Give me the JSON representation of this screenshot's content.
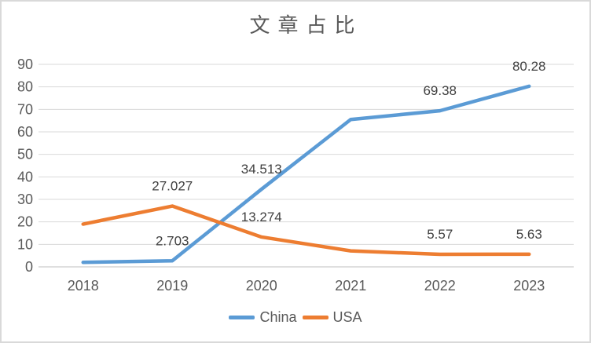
{
  "title": "文章占比",
  "colors": {
    "series_china": "#5B9BD5",
    "series_usa": "#ED7D31",
    "gridline": "#D9D9D9",
    "axis_line": "#BFBFBF",
    "axis_text": "#595959",
    "data_label_text": "#404040",
    "title_text": "#595959",
    "canvas_border": "#D9D9D9",
    "background": "#FFFFFF"
  },
  "chart_data": {
    "type": "line",
    "title": "文章占比",
    "xlabel": "",
    "ylabel": "",
    "categories": [
      "2018",
      "2019",
      "2020",
      "2021",
      "2022",
      "2023"
    ],
    "series": [
      {
        "name": "China",
        "color": "#5B9BD5",
        "values": [
          2.0,
          2.703,
          34.513,
          65.5,
          69.38,
          80.28
        ],
        "data_labels": [
          "",
          "2.703",
          "34.513",
          "",
          "69.38",
          "80.28"
        ]
      },
      {
        "name": "USA",
        "color": "#ED7D31",
        "values": [
          19.0,
          27.027,
          13.274,
          7.1,
          5.57,
          5.63
        ],
        "data_labels": [
          "",
          "27.027",
          "13.274",
          "",
          "5.57",
          "5.63"
        ]
      }
    ],
    "ylim": [
      0,
      90
    ],
    "yticks": [
      0,
      10,
      20,
      30,
      40,
      50,
      60,
      70,
      80,
      90
    ],
    "grid": true,
    "legend_position": "bottom"
  }
}
